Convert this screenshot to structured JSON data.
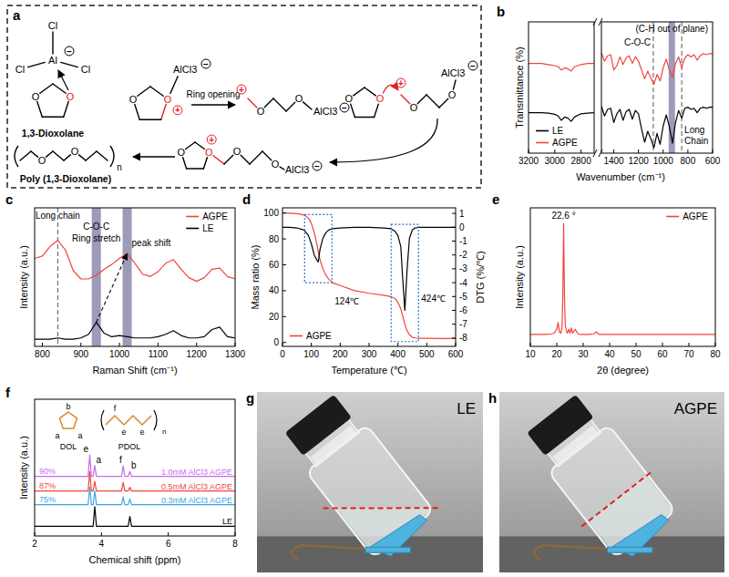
{
  "panel_labels": [
    "a",
    "b",
    "c",
    "d",
    "e",
    "f",
    "g",
    "h"
  ],
  "diagram": {
    "halogen": "Cl",
    "metal": "Al",
    "oxygen": "O",
    "acid": "AlCl3",
    "monomer": "1,3-Dioxolane",
    "step": "Ring opening",
    "polymer": "Poly (1,3-Dioxolane)",
    "repeat": "n",
    "plus": "+",
    "minus": "−"
  },
  "chart_data": [
    {
      "type": "line",
      "y_label": "Transmittance (%)",
      "x_label": "Wavenumber (cm⁻¹)",
      "xlim": [
        3200,
        2700
      ],
      "xticks": [
        3200,
        3000,
        2800
      ],
      "ylim": [
        0,
        12
      ],
      "tick_labels": "x",
      "legend": "lower-left",
      "x": [
        3200,
        3150,
        3100,
        3050,
        3000,
        2975,
        2950,
        2925,
        2900,
        2875,
        2850,
        2800,
        2750,
        2700
      ],
      "series": [
        {
          "name": "LE",
          "color": "#000000",
          "values": [
            3.7,
            3.7,
            3.7,
            3.65,
            3.55,
            3.4,
            3.0,
            3.3,
            3.2,
            2.9,
            3.3,
            3.6,
            3.65,
            3.7
          ]
        },
        {
          "name": "AGPE",
          "color": "#f0443f",
          "values": [
            8.2,
            8.2,
            8.2,
            8.1,
            8.0,
            7.9,
            7.6,
            7.8,
            7.7,
            7.5,
            7.9,
            8.1,
            8.2,
            8.2
          ]
        }
      ]
    },
    {
      "type": "line",
      "xlim": [
        1500,
        600
      ],
      "xticks": [
        1400,
        1200,
        1000,
        800,
        600
      ],
      "ylim": [
        0,
        12
      ],
      "tick_labels": "x",
      "x": [
        1500,
        1475,
        1450,
        1425,
        1400,
        1375,
        1350,
        1325,
        1300,
        1275,
        1250,
        1225,
        1200,
        1175,
        1150,
        1125,
        1100,
        1075,
        1050,
        1025,
        1000,
        975,
        950,
        925,
        900,
        875,
        850,
        825,
        800,
        775,
        750,
        725,
        700,
        675,
        650,
        625,
        600
      ],
      "series": [
        {
          "color": "#000000",
          "values": [
            4.3,
            3.4,
            4.0,
            4.1,
            2.8,
            3.6,
            4.0,
            3.0,
            3.8,
            4.0,
            3.1,
            3.9,
            3.6,
            2.2,
            1.0,
            2.0,
            1.3,
            0.5,
            1.8,
            0.8,
            2.5,
            3.5,
            2.4,
            0.9,
            2.8,
            3.9,
            3.2,
            4.1,
            4.2,
            4.0,
            4.1,
            3.7,
            4.1,
            4.2,
            4.1,
            4.2,
            4.2
          ]
        },
        {
          "color": "#f0443f",
          "values": [
            9.2,
            8.4,
            8.9,
            9.0,
            7.6,
            8.0,
            8.8,
            8.1,
            8.7,
            8.9,
            8.2,
            8.8,
            8.4,
            7.6,
            6.8,
            7.5,
            6.9,
            6.3,
            7.2,
            6.6,
            7.8,
            8.6,
            7.6,
            6.9,
            8.2,
            8.8,
            7.8,
            8.7,
            9.0,
            8.8,
            9.0,
            8.5,
            8.9,
            9.1,
            9.0,
            9.1,
            9.1
          ]
        }
      ],
      "annotations": [
        {
          "text": "(C-H out of plane)",
          "x": 930,
          "type": "band"
        },
        {
          "text": "C-O-C",
          "x": 1080,
          "line_style": "dashed"
        },
        {
          "text": "Long Chain",
          "x": 850,
          "line_style": "dashed"
        }
      ]
    },
    {
      "type": "line",
      "x_label": "Raman Shift (cm⁻¹)",
      "y_label": "Intensity (a.u.)",
      "xlim": [
        780,
        1300
      ],
      "xticks": [
        800,
        900,
        1000,
        1100,
        1200,
        1300
      ],
      "ylim": [
        0,
        11.5
      ],
      "tick_labels": "x",
      "legend": "upper-right",
      "x": [
        780,
        800,
        820,
        840,
        860,
        880,
        900,
        920,
        940,
        960,
        980,
        1000,
        1020,
        1040,
        1060,
        1080,
        1100,
        1120,
        1140,
        1160,
        1180,
        1200,
        1220,
        1240,
        1260,
        1280,
        1300
      ],
      "series": [
        {
          "name": "AGPE",
          "color": "#f0443f",
          "values": [
            7.3,
            7.5,
            8.3,
            8.8,
            8.0,
            6.3,
            5.6,
            5.6,
            5.9,
            6.4,
            6.8,
            7.3,
            7.7,
            6.9,
            6.0,
            5.8,
            6.2,
            6.9,
            7.2,
            6.4,
            5.7,
            5.4,
            5.7,
            6.4,
            6.5,
            5.8,
            5.6
          ]
        },
        {
          "name": "LE",
          "color": "#000000",
          "values": [
            0.6,
            0.6,
            0.6,
            0.7,
            0.6,
            0.6,
            0.7,
            1.0,
            2.0,
            1.1,
            0.8,
            0.9,
            0.8,
            0.7,
            0.7,
            0.7,
            0.8,
            1.0,
            1.3,
            0.9,
            0.7,
            0.7,
            0.8,
            1.4,
            1.6,
            0.8,
            0.7
          ]
        }
      ],
      "annotations": [
        {
          "text": "Long chain",
          "x": 840,
          "line_style": "dashed"
        },
        {
          "text": "C-O-C",
          "x": 940,
          "type": "band"
        },
        {
          "text": "Ring stretch",
          "x": 940
        },
        {
          "x": 1020,
          "type": "band"
        },
        {
          "text": "peak shift",
          "x": [
            940,
            1020
          ],
          "y": [
            2.0,
            7.7
          ],
          "type": "arrow"
        }
      ]
    },
    {
      "type": "line",
      "x_label": "Temperature (℃)",
      "y_label": "Mass ratio (%)",
      "y2_label": "DTG (%/℃)",
      "xlim": [
        0,
        600
      ],
      "xticks": [
        0,
        100,
        200,
        300,
        400,
        500,
        600
      ],
      "ylim": [
        -3,
        104
      ],
      "yticks": [
        0,
        20,
        40,
        60,
        80,
        100
      ],
      "y2lim": [
        -8.6,
        1.4
      ],
      "y2ticks": [
        -8,
        -7,
        -6,
        -5,
        -4,
        -3,
        -2,
        -1,
        0,
        1
      ],
      "legend": "lower-left",
      "x": [
        0,
        25,
        50,
        75,
        90,
        100,
        110,
        120,
        124,
        130,
        140,
        150,
        160,
        175,
        200,
        250,
        300,
        350,
        375,
        390,
        400,
        410,
        416,
        424,
        432,
        440,
        450,
        460,
        475,
        500,
        550,
        600
      ],
      "series": [
        {
          "name": "AGPE",
          "color": "#f0443f",
          "values": [
            100,
            99.8,
            99.5,
            98.5,
            96,
            92,
            85,
            75,
            70,
            64,
            57,
            52,
            49,
            46,
            44,
            40,
            38,
            36.5,
            35.5,
            34,
            31,
            26,
            21,
            14,
            9,
            6,
            4,
            3.5,
            3.3,
            3.2,
            3.1,
            3.1
          ]
        },
        {
          "color": "#000000",
          "axis": "y2",
          "values": [
            0,
            0,
            -0.05,
            -0.2,
            -0.6,
            -1.2,
            -2.0,
            -2.4,
            -2.5,
            -1.6,
            -0.8,
            -0.4,
            -0.2,
            -0.1,
            -0.05,
            0,
            0,
            -0.05,
            -0.1,
            -0.3,
            -0.6,
            -1.4,
            -3.5,
            -6.0,
            -3.0,
            -0.8,
            -0.2,
            -0.05,
            0,
            0,
            0,
            0
          ]
        }
      ],
      "annotations": [
        {
          "text": "124℃",
          "x": 124,
          "y": -5.6,
          "axis": "y2"
        },
        {
          "text": "424℃",
          "x": 424,
          "y": -5.4,
          "axis": "y2"
        }
      ]
    },
    {
      "type": "line",
      "x_label": "2θ (degree)",
      "y_label": "Intensity (a.u.)",
      "xlim": [
        10,
        80
      ],
      "xticks": [
        10,
        20,
        30,
        40,
        50,
        60,
        70,
        80
      ],
      "ylim": [
        0,
        10.5
      ],
      "tick_labels": "x",
      "legend": "upper-right",
      "x": [
        10,
        12,
        14,
        16,
        18,
        19,
        20,
        20.5,
        21,
        21.5,
        22,
        22.3,
        22.6,
        22.9,
        23.2,
        23.6,
        24,
        24.5,
        25,
        25.5,
        26,
        27,
        28,
        29,
        30,
        32,
        34,
        35,
        36,
        38,
        40,
        45,
        50,
        55,
        60,
        65,
        70,
        75,
        80
      ],
      "series": [
        {
          "name": "AGPE",
          "color": "#f0443f",
          "values": [
            0.9,
            0.9,
            0.9,
            0.9,
            0.95,
            1.0,
            1.3,
            1.8,
            1.1,
            1.0,
            1.4,
            4.0,
            9.3,
            4.0,
            1.6,
            1.2,
            1.0,
            1.3,
            1.0,
            1.4,
            1.0,
            1.3,
            0.95,
            0.9,
            0.9,
            0.9,
            0.95,
            1.1,
            0.9,
            0.9,
            0.9,
            0.9,
            0.9,
            0.9,
            0.9,
            0.9,
            0.9,
            0.9,
            0.9
          ]
        }
      ],
      "annotations": [
        {
          "text": "22.6 °",
          "x": 22.6,
          "y": 9.3
        }
      ]
    },
    {
      "type": "line",
      "x_label": "Chemical shift (ppm)",
      "y_label": "Intensity (a.u.)",
      "xlim": [
        2,
        8
      ],
      "xticks": [
        2,
        4,
        6,
        8
      ],
      "ylim": [
        0,
        14
      ],
      "tick_labels": "x",
      "x": [
        2,
        3.55,
        3.6,
        3.65,
        3.7,
        3.75,
        3.8,
        3.85,
        3.9,
        4.55,
        4.6,
        4.65,
        4.7,
        4.8,
        4.85,
        4.9,
        8
      ],
      "series": [
        {
          "name": "1.0mM AlCl3 AGPE",
          "color": "#c56cf0",
          "conversion": {
            "value": 90,
            "label": "90%"
          },
          "values": [
            6.1,
            6.1,
            6.1,
            8.3,
            6.1,
            6.1,
            7.2,
            6.1,
            6.1,
            6.1,
            6.1,
            7.2,
            6.1,
            6.1,
            6.6,
            6.1,
            6.1
          ]
        },
        {
          "name": "0.5mM AlCl3 AGPE",
          "color": "#f0443f",
          "conversion": {
            "value": 87,
            "label": "87%"
          },
          "values": [
            4.6,
            4.6,
            4.6,
            6.6,
            4.6,
            4.6,
            5.6,
            4.6,
            4.6,
            4.6,
            4.6,
            5.5,
            4.6,
            4.6,
            5.0,
            4.6,
            4.6
          ]
        },
        {
          "name": "0.3mM AlCl3 AGPE",
          "color": "#3aa8e0",
          "conversion": {
            "value": 75,
            "label": "75%"
          },
          "values": [
            3.2,
            3.2,
            3.2,
            5.0,
            3.2,
            3.2,
            4.6,
            3.2,
            3.2,
            3.2,
            3.2,
            4.0,
            3.2,
            3.2,
            3.8,
            3.2,
            3.2
          ]
        },
        {
          "name": "LE",
          "color": "#000000",
          "values": [
            1,
            1,
            1,
            1,
            1,
            1,
            3,
            1,
            1,
            1,
            1,
            1,
            1,
            1,
            2,
            1,
            1
          ]
        }
      ],
      "annotations": [
        {
          "text": "e",
          "x": 3.65,
          "y": 8.3
        },
        {
          "text": "a",
          "x": 3.8,
          "y": 7.2
        },
        {
          "text": "f",
          "x": 4.65,
          "y": 7.2
        },
        {
          "text": "b",
          "x": 4.85,
          "y": 6.6
        }
      ],
      "structure": {
        "monomer": "DOL",
        "polymer": "PDOL",
        "ring_labels": [
          "a",
          "b",
          "a"
        ],
        "chain_labels": [
          "f",
          "e",
          "e"
        ],
        "repeat": "n"
      }
    }
  ],
  "photos": [
    {
      "label": "LE"
    },
    {
      "label": "AGPE"
    }
  ]
}
